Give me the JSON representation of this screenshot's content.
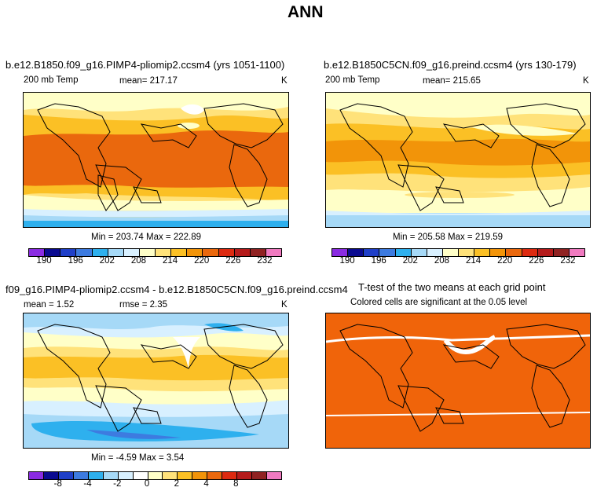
{
  "main_title": "ANN",
  "panels": {
    "p1": {
      "title": "b.e12.B1850.f09_g16.PIMP4-pliomip2.ccsm4 (yrs 1051-1100)",
      "var": "200 mb Temp",
      "stat": "mean=  217.17",
      "units": "K",
      "minmax": "Min = 203.74  Max = 222.89"
    },
    "p2": {
      "title": "b.e12.B1850C5CN.f09_g16.preind.ccsm4 (yrs 130-179)",
      "var": "200 mb Temp",
      "stat": "mean=  215.65",
      "units": "K",
      "minmax": "Min = 205.58  Max = 219.59"
    },
    "p3": {
      "title": "f09_g16.PIMP4-pliomip2.ccsm4 - b.e12.B1850C5CN.f09_g16.preind.ccsm4",
      "var": "mean =    1.52",
      "stat": "rmse =    2.35",
      "units": "K",
      "minmax": "Min =  -4.59  Max =    3.54"
    },
    "p4": {
      "title": "T-test of the two means at each grid point",
      "subtitle": "Colored cells are significant at the 0.05 level"
    }
  },
  "colorbars": {
    "abs_colors": [
      "#8a2be2",
      "#0a0a90",
      "#1f3fc8",
      "#3d7be0",
      "#2eb0ee",
      "#a6d9f7",
      "#d8f0ff",
      "#ffffc8",
      "#ffe27a",
      "#fbc025",
      "#f29409",
      "#ea680d",
      "#dd2a10",
      "#b51b1b",
      "#902222",
      "#f07ac0"
    ],
    "abs_labels": [
      "190",
      "196",
      "202",
      "208",
      "214",
      "220",
      "226",
      "232"
    ],
    "diff_colors": [
      "#8a2be2",
      "#0a0a90",
      "#1f3fc8",
      "#3d7be0",
      "#2eb0ee",
      "#a6d9f7",
      "#d8f0ff",
      "#ffffff",
      "#ffffc8",
      "#ffe27a",
      "#fbc025",
      "#f29409",
      "#ea680d",
      "#dd2a10",
      "#b51b1b",
      "#902222",
      "#f07ac0"
    ],
    "diff_labels": [
      "-8",
      "-4",
      "-2",
      "0",
      "2",
      "4",
      "8"
    ]
  },
  "ttest_color": "#f0640a"
}
